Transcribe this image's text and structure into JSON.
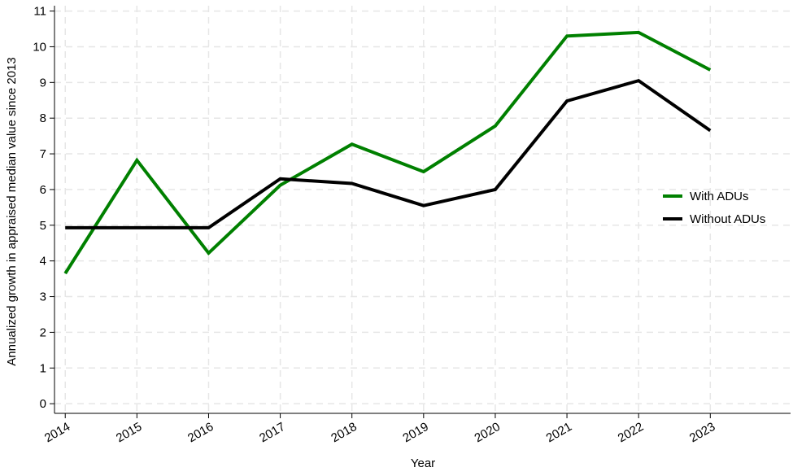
{
  "chart_data": {
    "type": "line",
    "x_label": "Year",
    "y_label": "Annualized growth in appraised median value since 2013",
    "x": [
      2014,
      2015,
      2016,
      2017,
      2018,
      2019,
      2020,
      2021,
      2022,
      2023
    ],
    "series": [
      {
        "name": "With ADUs",
        "color": "#008000",
        "values": [
          3.65,
          6.82,
          4.22,
          6.12,
          7.27,
          6.5,
          7.78,
          10.3,
          10.4,
          9.35
        ]
      },
      {
        "name": "Without ADUs",
        "color": "#000000",
        "values": [
          4.93,
          4.93,
          4.93,
          6.3,
          6.17,
          5.55,
          6.0,
          8.48,
          9.05,
          7.65
        ]
      }
    ],
    "xlim": [
      2013.85,
      2024.12
    ],
    "ylim": [
      -0.27,
      11.15
    ],
    "xticks": [
      2014,
      2015,
      2016,
      2017,
      2018,
      2019,
      2020,
      2021,
      2022,
      2023
    ],
    "yticks": [
      0,
      1,
      2,
      3,
      4,
      5,
      6,
      7,
      8,
      9,
      10,
      11
    ],
    "grid": true,
    "legend": "right"
  }
}
